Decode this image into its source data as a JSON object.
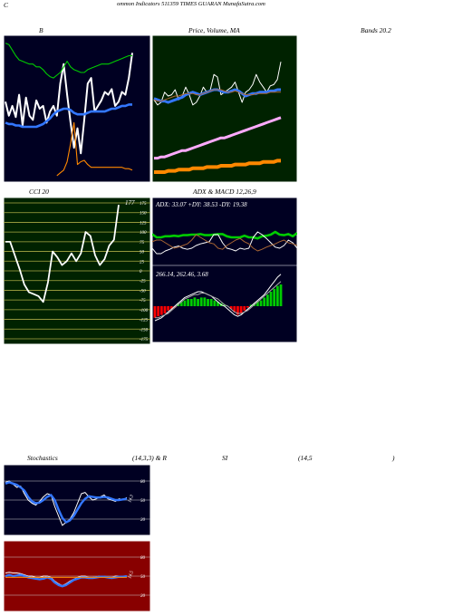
{
  "header": {
    "c_letter": "C",
    "title": "ommon  Indicators 511359 TIMES GUARAN  MunafaSutra.com"
  },
  "labels": {
    "b_label": "B",
    "price_label": "Price,  Volume,  MA",
    "bands_label": "Bands 20.2",
    "cci_label": "CCI 20",
    "adx_label": "ADX  & MACD 12,26,9",
    "stoch_label": "Stochastics",
    "stoch_params": "(14,3,3) & R",
    "si_label": "SI",
    "rsi_params": "(14,5",
    "close_paren": ")"
  },
  "watermark": "MunafaSutra.com",
  "colors": {
    "bollinger_bg": "#000022",
    "price_bg": "#002200",
    "cci_bg": "#002200",
    "adx_bg": "#000022",
    "stoch_bg": "#000022",
    "rsi_bg": "#880000",
    "green": "#00cc00",
    "blue": "#3377ff",
    "orange": "#ff8800",
    "white": "#ffffff",
    "red": "#ff0000",
    "brown": "#aa6633"
  },
  "chart_data": [
    {
      "id": "bollinger",
      "type": "line",
      "title": "B",
      "ylim": [
        0,
        100
      ],
      "series": [
        {
          "color": "white",
          "values": [
            55,
            45,
            52,
            44,
            60,
            38,
            58,
            45,
            42,
            56,
            50,
            52,
            40,
            48,
            52,
            45,
            68,
            82,
            60,
            40,
            22,
            36,
            18,
            42,
            68,
            72,
            48,
            52,
            56,
            62,
            60,
            64,
            52,
            55,
            62,
            60,
            72,
            90
          ]
        },
        {
          "color": "green",
          "values": [
            97,
            96,
            92,
            88,
            85,
            84,
            83,
            82,
            82,
            80,
            80,
            78,
            75,
            73,
            72,
            74,
            76,
            80,
            84,
            80,
            78,
            77,
            76,
            76,
            78,
            79,
            80,
            81,
            82,
            82,
            82,
            83,
            84,
            85,
            86,
            87,
            88,
            88
          ]
        },
        {
          "color": "blue",
          "values": [
            40,
            39,
            39,
            38,
            38,
            37,
            37,
            37,
            37,
            37,
            38,
            39,
            41,
            43,
            46,
            48,
            49,
            50,
            50,
            49,
            47,
            46,
            46,
            46,
            47,
            48,
            48,
            48,
            48,
            48,
            49,
            50,
            50,
            51,
            52,
            52,
            53,
            53
          ]
        },
        {
          "color": "orange",
          "start": 15,
          "values": [
            2,
            4,
            6,
            12,
            25,
            40,
            10,
            12,
            13,
            10,
            8,
            8,
            8,
            8,
            8,
            8,
            8,
            8,
            8,
            8,
            7,
            7,
            6
          ]
        }
      ]
    },
    {
      "id": "price_volume_ma",
      "type": "line",
      "title": "Price,  Volume,  MA",
      "ylim": [
        0,
        100
      ],
      "series": [
        {
          "color": "white",
          "values": [
            52,
            48,
            50,
            58,
            55,
            56,
            60,
            52,
            55,
            62,
            56,
            48,
            50,
            55,
            62,
            58,
            60,
            72,
            70,
            56,
            58,
            60,
            62,
            66,
            58,
            50,
            58,
            60,
            64,
            72,
            66,
            62,
            58,
            63,
            64,
            68,
            82
          ]
        },
        {
          "color": "blue",
          "values": [
            53,
            52,
            51,
            51,
            50,
            51,
            52,
            53,
            54,
            56,
            57,
            58,
            57,
            56,
            57,
            58,
            59,
            60,
            60,
            59,
            58,
            58,
            59,
            60,
            59,
            57,
            55,
            56,
            57,
            57,
            58,
            58,
            58,
            59,
            59,
            60,
            60
          ]
        },
        {
          "color": "brown",
          "values": [
            52,
            51,
            51,
            52,
            53,
            54,
            55,
            55,
            56,
            57,
            57,
            57,
            56,
            56,
            57,
            58,
            59,
            60,
            60,
            60,
            59,
            58,
            58,
            59,
            58,
            57,
            56,
            56,
            56,
            57,
            57,
            57,
            57,
            58,
            58,
            58,
            58
          ]
        },
        {
          "color": "pink",
          "values": [
            6,
            6,
            7,
            7,
            8,
            9,
            10,
            11,
            12,
            12,
            13,
            14,
            15,
            16,
            17,
            18,
            19,
            20,
            21,
            22,
            22,
            23,
            24,
            25,
            26,
            27,
            28,
            29,
            30,
            31,
            32,
            33,
            34,
            35,
            36,
            37,
            38
          ]
        },
        {
          "color": "orange",
          "values": [
            -5,
            -5,
            -5,
            -5,
            -4,
            -4,
            -4,
            -3,
            -3,
            -3,
            -3,
            -2,
            -2,
            -2,
            -2,
            -1,
            -1,
            -1,
            -1,
            0,
            0,
            0,
            0,
            1,
            1,
            1,
            1,
            2,
            2,
            2,
            2,
            3,
            3,
            3,
            3,
            4,
            4
          ]
        }
      ]
    },
    {
      "id": "cci",
      "type": "line",
      "title": "CCI 20",
      "ylim": [
        -175,
        175
      ],
      "yticks": [
        175,
        150,
        125,
        100,
        75,
        50,
        25,
        0,
        -25,
        -50,
        -75,
        -100,
        -125,
        -150,
        -175
      ],
      "last_label": "177",
      "values": [
        75,
        75,
        40,
        5,
        -35,
        -55,
        -60,
        -65,
        -80,
        -30,
        50,
        35,
        15,
        25,
        45,
        25,
        45,
        100,
        90,
        40,
        15,
        30,
        65,
        80,
        170
      ]
    },
    {
      "id": "adx_macd",
      "type": "line",
      "title": "ADX  & MACD 12,26,9",
      "adx_text": "ADX: 33.07  +DY: 38.53  -DY: 19.38",
      "macd_text": "266.14,  262.46,  3.68",
      "adx_series": [
        {
          "color": "green",
          "values": [
            56,
            50,
            50,
            52,
            52,
            53,
            52,
            54,
            54,
            55,
            55,
            56,
            54,
            54,
            55,
            56,
            56,
            52,
            50,
            50,
            50,
            53,
            50,
            50,
            48,
            52,
            53,
            55,
            60,
            55,
            54,
            56,
            52,
            58
          ]
        },
        {
          "color": "white",
          "values": [
            30,
            20,
            20,
            25,
            28,
            32,
            34,
            30,
            28,
            30,
            35,
            38,
            40,
            42,
            55,
            55,
            40,
            30,
            28,
            25,
            30,
            28,
            30,
            50,
            60,
            55,
            48,
            40,
            32,
            30,
            35,
            45,
            40,
            30
          ]
        },
        {
          "color": "brown",
          "values": [
            42,
            45,
            45,
            40,
            35,
            30,
            32,
            35,
            38,
            45,
            55,
            50,
            45,
            40,
            38,
            30,
            28,
            35,
            40,
            45,
            48,
            42,
            38,
            30,
            25,
            28,
            32,
            35,
            38,
            42,
            45,
            40,
            38,
            35
          ]
        }
      ],
      "macd_histogram": [
        -8,
        -7,
        -6,
        -5,
        -3,
        -2,
        -1,
        2,
        3,
        4,
        5,
        5,
        6,
        5,
        6,
        6,
        5,
        5,
        4,
        3,
        2,
        1,
        0,
        -2,
        -4,
        -6,
        -5,
        -3,
        -1,
        1,
        2,
        3,
        4,
        6,
        8,
        10,
        12,
        14,
        15
      ],
      "macd_series": [
        {
          "color": "white",
          "values": [
            -10,
            -9,
            -8,
            -6,
            -4,
            -2,
            0,
            2,
            4,
            6,
            7,
            8,
            9,
            10,
            10,
            9,
            8,
            7,
            5,
            3,
            1,
            0,
            -2,
            -4,
            -6,
            -7,
            -6,
            -4,
            -2,
            0,
            2,
            4,
            6,
            8,
            11,
            14,
            17,
            20,
            22
          ]
        },
        {
          "color": "gray",
          "values": [
            -8,
            -8,
            -7,
            -6,
            -5,
            -3,
            -1,
            1,
            3,
            5,
            6,
            7,
            8,
            8,
            9,
            9,
            8,
            7,
            6,
            5,
            3,
            1,
            0,
            -2,
            -4,
            -5,
            -5,
            -4,
            -3,
            -1,
            1,
            3,
            5,
            7,
            9,
            11,
            13,
            15,
            17
          ]
        }
      ]
    },
    {
      "id": "stochastics",
      "type": "line",
      "title": "Stochastics (14,3,3)",
      "ylim": [
        0,
        100
      ],
      "yticks": [
        80,
        50,
        20
      ],
      "side_label": "14,3",
      "series": [
        {
          "color": "white",
          "values": [
            78,
            80,
            75,
            70,
            72,
            60,
            50,
            45,
            42,
            48,
            55,
            60,
            58,
            40,
            25,
            10,
            15,
            20,
            30,
            45,
            60,
            62,
            55,
            50,
            52,
            55,
            58,
            52,
            50,
            48,
            52,
            50,
            54
          ]
        },
        {
          "color": "blue",
          "values": [
            76,
            78,
            76,
            74,
            70,
            65,
            55,
            48,
            45,
            46,
            50,
            55,
            58,
            50,
            35,
            22,
            15,
            18,
            25,
            35,
            45,
            52,
            56,
            55,
            54,
            54,
            55,
            54,
            52,
            50,
            50,
            51,
            52
          ]
        }
      ]
    },
    {
      "id": "rsi",
      "type": "line",
      "title": "RSI (14,5)",
      "ylim": [
        0,
        100
      ],
      "yticks": [
        80,
        50,
        20
      ],
      "side_label": "14,5",
      "series": [
        {
          "color": "white",
          "values": [
            55,
            56,
            55,
            55,
            54,
            52,
            50,
            50,
            48,
            48,
            50,
            50,
            48,
            42,
            38,
            35,
            38,
            42,
            45,
            48,
            50,
            50,
            48,
            48,
            49,
            50,
            50,
            48,
            48,
            50,
            50,
            50,
            50
          ]
        },
        {
          "color": "blue",
          "values": [
            50,
            52,
            50,
            51,
            52,
            50,
            48,
            47,
            46,
            45,
            46,
            48,
            46,
            40,
            36,
            34,
            36,
            40,
            44,
            46,
            48,
            48,
            47,
            47,
            48,
            49,
            49,
            48,
            47,
            48,
            49,
            49,
            50
          ]
        },
        {
          "color": "orange",
          "values": [
            48,
            48,
            48,
            48,
            48,
            48,
            48,
            48,
            48,
            48,
            48,
            48,
            48,
            48,
            48,
            48,
            48,
            48,
            48,
            48,
            48,
            48,
            48,
            48,
            48,
            48,
            48,
            48,
            48,
            48,
            48,
            48,
            48
          ]
        }
      ]
    }
  ]
}
